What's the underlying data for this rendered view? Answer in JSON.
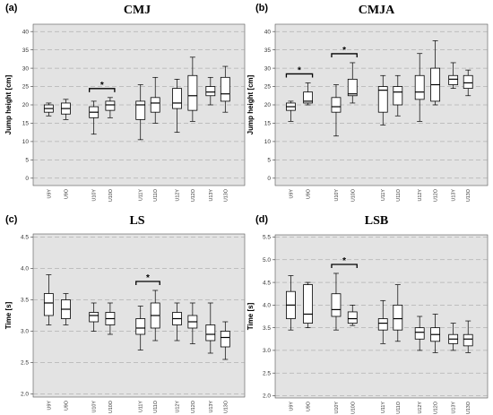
{
  "chart_data": [
    {
      "panel": "(a)",
      "title": "CMJ",
      "type": "boxplot",
      "ylabel": "Jump height [cm]",
      "ylim": [
        -2,
        42
      ],
      "yticks": [
        0,
        5,
        10,
        15,
        20,
        25,
        30,
        35,
        40
      ],
      "grid": "horizontal dashed",
      "categories": [
        "U9Y",
        "U9O",
        "U10Y",
        "U10O",
        "U11Y",
        "U11O",
        "U12Y",
        "U12O",
        "U13Y",
        "U13O"
      ],
      "boxes": [
        {
          "min": 17.0,
          "q1": 18.0,
          "median": 19.0,
          "q3": 20.0,
          "max": 20.5
        },
        {
          "min": 16.0,
          "q1": 17.5,
          "median": 19.0,
          "q3": 20.5,
          "max": 21.5
        },
        {
          "min": 12.0,
          "q1": 16.5,
          "median": 18.0,
          "q3": 19.5,
          "max": 21.0
        },
        {
          "min": 16.5,
          "q1": 18.5,
          "median": 20.0,
          "q3": 21.0,
          "max": 22.0
        },
        {
          "min": 10.5,
          "q1": 16.0,
          "median": 20.0,
          "q3": 21.0,
          "max": 25.5
        },
        {
          "min": 15.0,
          "q1": 18.0,
          "median": 20.5,
          "q3": 22.0,
          "max": 27.5
        },
        {
          "min": 12.5,
          "q1": 19.0,
          "median": 20.5,
          "q3": 24.5,
          "max": 27.0
        },
        {
          "min": 15.5,
          "q1": 18.5,
          "median": 22.5,
          "q3": 28.0,
          "max": 33.0
        },
        {
          "min": 20.0,
          "q1": 22.5,
          "median": 23.5,
          "q3": 25.0,
          "max": 27.5
        },
        {
          "min": 18.0,
          "q1": 21.0,
          "median": 23.0,
          "q3": 27.5,
          "max": 30.5
        }
      ],
      "significance": [
        {
          "from": "U10Y",
          "to": "U10O",
          "label": "*"
        }
      ]
    },
    {
      "panel": "(b)",
      "title": "CMJA",
      "type": "boxplot",
      "ylabel": "Jump height [cm]",
      "ylim": [
        -2,
        42
      ],
      "yticks": [
        0,
        5,
        10,
        15,
        20,
        25,
        30,
        35,
        40
      ],
      "grid": "horizontal dashed",
      "categories": [
        "U9Y",
        "U9O",
        "U10Y",
        "U10O",
        "U11Y",
        "U11O",
        "U12Y",
        "U12O",
        "U13Y",
        "U13O"
      ],
      "boxes": [
        {
          "min": 15.5,
          "q1": 18.5,
          "median": 19.5,
          "q3": 20.5,
          "max": 21.0
        },
        {
          "min": 20.0,
          "q1": 20.5,
          "median": 21.0,
          "q3": 23.5,
          "max": 26.0
        },
        {
          "min": 11.5,
          "q1": 18.0,
          "median": 19.5,
          "q3": 22.0,
          "max": 25.5
        },
        {
          "min": 20.5,
          "q1": 22.5,
          "median": 23.0,
          "q3": 27.0,
          "max": 31.5
        },
        {
          "min": 14.5,
          "q1": 18.0,
          "median": 24.0,
          "q3": 25.0,
          "max": 28.0
        },
        {
          "min": 17.0,
          "q1": 20.0,
          "median": 23.5,
          "q3": 25.0,
          "max": 28.0
        },
        {
          "min": 15.5,
          "q1": 21.5,
          "median": 23.5,
          "q3": 28.0,
          "max": 34.0
        },
        {
          "min": 20.0,
          "q1": 21.0,
          "median": 25.5,
          "q3": 30.0,
          "max": 37.5
        },
        {
          "min": 24.5,
          "q1": 25.5,
          "median": 27.0,
          "q3": 28.0,
          "max": 31.5
        },
        {
          "min": 22.5,
          "q1": 24.5,
          "median": 26.0,
          "q3": 28.0,
          "max": 29.5
        }
      ],
      "significance": [
        {
          "from": "U9Y",
          "to": "U9O",
          "label": "*"
        },
        {
          "from": "U10Y",
          "to": "U10O",
          "label": "*"
        }
      ]
    },
    {
      "panel": "(c)",
      "title": "LS",
      "type": "boxplot",
      "ylabel": "Time [s]",
      "ylim": [
        1.95,
        4.55
      ],
      "yticks": [
        2.0,
        2.5,
        3.0,
        3.5,
        4.0,
        4.5
      ],
      "grid": "horizontal dashed",
      "categories": [
        "U9Y",
        "U9O",
        "U10Y",
        "U10O",
        "U11Y",
        "U11O",
        "U12Y",
        "U12O",
        "U13Y",
        "U13O"
      ],
      "boxes": [
        {
          "min": 3.1,
          "q1": 3.25,
          "median": 3.45,
          "q3": 3.6,
          "max": 3.9
        },
        {
          "min": 3.1,
          "q1": 3.2,
          "median": 3.35,
          "q3": 3.5,
          "max": 3.6
        },
        {
          "min": 3.0,
          "q1": 3.15,
          "median": 3.25,
          "q3": 3.3,
          "max": 3.45
        },
        {
          "min": 2.95,
          "q1": 3.1,
          "median": 3.2,
          "q3": 3.3,
          "max": 3.45
        },
        {
          "min": 2.7,
          "q1": 2.95,
          "median": 3.05,
          "q3": 3.2,
          "max": 3.4
        },
        {
          "min": 2.85,
          "q1": 3.05,
          "median": 3.25,
          "q3": 3.45,
          "max": 3.65
        },
        {
          "min": 2.85,
          "q1": 3.1,
          "median": 3.2,
          "q3": 3.3,
          "max": 3.45
        },
        {
          "min": 2.8,
          "q1": 3.05,
          "median": 3.15,
          "q3": 3.25,
          "max": 3.45
        },
        {
          "min": 2.65,
          "q1": 2.85,
          "median": 2.95,
          "q3": 3.1,
          "max": 3.45
        },
        {
          "min": 2.55,
          "q1": 2.75,
          "median": 2.9,
          "q3": 3.0,
          "max": 3.15
        }
      ],
      "significance": [
        {
          "from": "U11Y",
          "to": "U11O",
          "label": "*"
        }
      ]
    },
    {
      "panel": "(d)",
      "title": "LSB",
      "type": "boxplot",
      "ylabel": "Time [s]",
      "ylim": [
        1.95,
        5.55
      ],
      "yticks": [
        2.0,
        2.5,
        3.0,
        3.5,
        4.0,
        4.5,
        5.0,
        5.5
      ],
      "grid": "horizontal dashed",
      "categories": [
        "U9Y",
        "U9O",
        "U10Y",
        "U10O",
        "U11Y",
        "U11O",
        "U12Y",
        "U12O",
        "U13Y",
        "U13O"
      ],
      "boxes": [
        {
          "min": 3.45,
          "q1": 3.7,
          "median": 4.0,
          "q3": 4.3,
          "max": 4.65
        },
        {
          "min": 3.5,
          "q1": 3.6,
          "median": 3.8,
          "q3": 4.45,
          "max": 4.5
        },
        {
          "min": 3.45,
          "q1": 3.75,
          "median": 3.9,
          "q3": 4.25,
          "max": 4.7
        },
        {
          "min": 3.55,
          "q1": 3.6,
          "median": 3.7,
          "q3": 3.85,
          "max": 4.0
        },
        {
          "min": 3.15,
          "q1": 3.45,
          "median": 3.6,
          "q3": 3.7,
          "max": 4.1
        },
        {
          "min": 3.2,
          "q1": 3.45,
          "median": 3.7,
          "q3": 4.0,
          "max": 4.45
        },
        {
          "min": 3.0,
          "q1": 3.25,
          "median": 3.4,
          "q3": 3.5,
          "max": 3.75
        },
        {
          "min": 2.95,
          "q1": 3.2,
          "median": 3.35,
          "q3": 3.5,
          "max": 3.8
        },
        {
          "min": 3.0,
          "q1": 3.15,
          "median": 3.25,
          "q3": 3.35,
          "max": 3.6
        },
        {
          "min": 2.95,
          "q1": 3.1,
          "median": 3.25,
          "q3": 3.35,
          "max": 3.65
        }
      ],
      "significance": [
        {
          "from": "U10Y",
          "to": "U10O",
          "label": "*"
        }
      ]
    }
  ],
  "colors": {
    "panel_bg": "#e3e3e3",
    "grid": "#9a9a9a",
    "box_fill": "#ffffff",
    "stroke": "#000000"
  }
}
